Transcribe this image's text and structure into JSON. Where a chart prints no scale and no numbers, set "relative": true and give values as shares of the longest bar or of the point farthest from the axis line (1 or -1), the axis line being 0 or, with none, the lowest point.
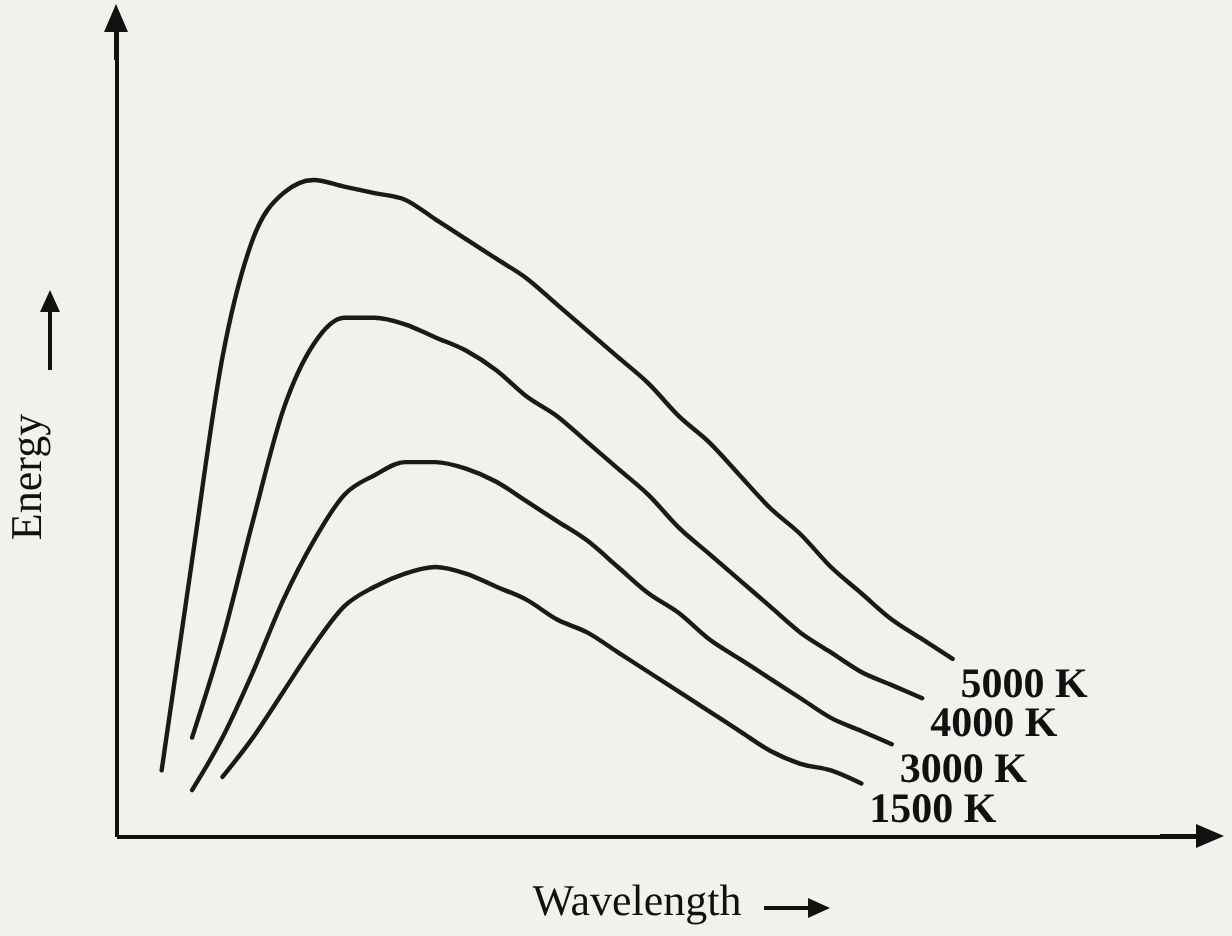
{
  "chart_data": {
    "type": "line",
    "xlabel": "Wavelength",
    "ylabel": "Energy",
    "relative": true,
    "grid": false,
    "marker": "none",
    "line_style": "solid",
    "categories": [
      null,
      null,
      null,
      null,
      null,
      null,
      null,
      null,
      null,
      null,
      null,
      null,
      null,
      null,
      null,
      null,
      null,
      null,
      null,
      null,
      null,
      null,
      null,
      null,
      null,
      null,
      null
    ],
    "series": [
      {
        "name": "5000 K",
        "color": "#1a1a1a",
        "values": [
          0.1,
          0.42,
          0.73,
          0.91,
          0.98,
          1.0,
          0.99,
          0.98,
          0.97,
          0.94,
          0.91,
          0.88,
          0.85,
          0.81,
          0.77,
          0.73,
          0.69,
          0.64,
          0.6,
          0.55,
          0.5,
          0.46,
          0.41,
          0.37,
          0.33,
          0.3,
          0.27
        ]
      },
      {
        "name": "4000 K",
        "color": "#1a1a1a",
        "values": [
          null,
          0.15,
          0.3,
          0.48,
          0.65,
          0.75,
          0.79,
          0.79,
          0.78,
          0.76,
          0.74,
          0.71,
          0.67,
          0.64,
          0.6,
          0.56,
          0.52,
          0.47,
          0.43,
          0.39,
          0.35,
          0.31,
          0.28,
          0.25,
          0.23,
          0.21,
          null
        ]
      },
      {
        "name": "3000 K",
        "color": "#1a1a1a",
        "values": [
          null,
          0.07,
          0.15,
          0.25,
          0.36,
          0.45,
          0.52,
          0.55,
          0.57,
          0.57,
          0.56,
          0.54,
          0.51,
          0.48,
          0.45,
          0.41,
          0.37,
          0.34,
          0.3,
          0.27,
          0.24,
          0.21,
          0.18,
          0.16,
          0.14,
          null,
          null
        ]
      },
      {
        "name": "1500 K",
        "color": "#1a1a1a",
        "values": [
          null,
          null,
          0.09,
          0.15,
          0.22,
          0.29,
          0.35,
          0.38,
          0.4,
          0.41,
          0.4,
          0.38,
          0.36,
          0.33,
          0.31,
          0.28,
          0.25,
          0.22,
          0.19,
          0.16,
          0.13,
          0.11,
          0.1,
          0.08,
          null,
          null,
          null
        ]
      }
    ]
  }
}
